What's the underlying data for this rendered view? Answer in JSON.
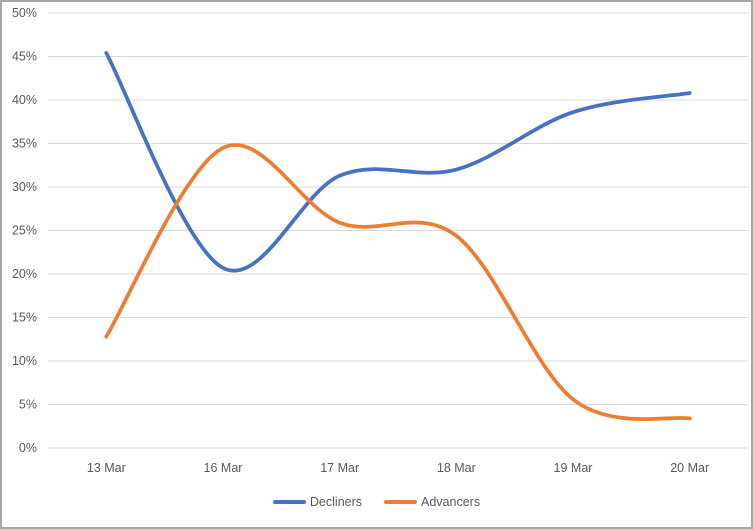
{
  "chart_data": {
    "type": "line",
    "smooth": true,
    "title": "",
    "xlabel": "",
    "ylabel": "",
    "categories": [
      "13 Mar",
      "16 Mar",
      "17 Mar",
      "18 Mar",
      "19 Mar",
      "20 Mar"
    ],
    "series": [
      {
        "name": "Decliners",
        "color": "#4472C4",
        "values": [
          45.4,
          20.7,
          31.3,
          32.0,
          38.6,
          40.8
        ]
      },
      {
        "name": "Advancers",
        "color": "#ED7D31",
        "values": [
          12.8,
          34.5,
          25.9,
          24.4,
          5.6,
          3.4
        ]
      }
    ],
    "y_axis": {
      "min": 0,
      "max": 50,
      "step": 5,
      "tick_labels": [
        "0%",
        "5%",
        "10%",
        "15%",
        "20%",
        "25%",
        "30%",
        "35%",
        "40%",
        "45%",
        "50%"
      ]
    },
    "x_axis": {
      "tick_labels": [
        "13 Mar",
        "16 Mar",
        "17 Mar",
        "18 Mar",
        "19 Mar",
        "20 Mar"
      ]
    },
    "grid": true,
    "legend_position": "bottom",
    "legend_entries": [
      "Decliners",
      "Advancers"
    ]
  },
  "style": {
    "gridline_color": "#D9D9D9",
    "label_color": "#595959",
    "background_color": "#FFFFFF",
    "border_color": "#A6A6A6",
    "line_width": 3.75
  }
}
